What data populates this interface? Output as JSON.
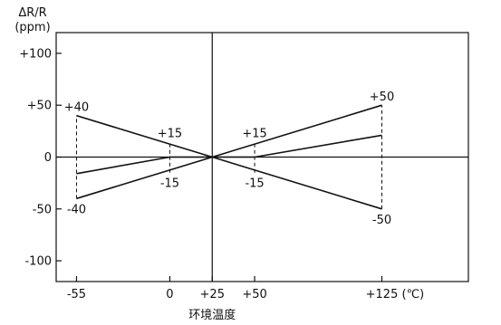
{
  "chart_data": {
    "type": "line",
    "title": "",
    "ylabel_line1": "ΔR/R",
    "ylabel_line2": "(ppm)",
    "xlabel": "环境温度",
    "x_unit": "(℃)",
    "xlim": [
      -67,
      176
    ],
    "ylim": [
      -120,
      120
    ],
    "grid": false,
    "x_ticks": [
      {
        "value": -55,
        "label": "-55"
      },
      {
        "value": 0,
        "label": "0"
      },
      {
        "value": 25,
        "label": "+25"
      },
      {
        "value": 50,
        "label": "+50"
      },
      {
        "value": 125,
        "label": "+125"
      }
    ],
    "y_ticks": [
      {
        "value": 100,
        "label": "+100"
      },
      {
        "value": 50,
        "label": "+50"
      },
      {
        "value": 0,
        "label": "0"
      },
      {
        "value": -50,
        "label": "-50"
      },
      {
        "value": -100,
        "label": "-100"
      }
    ],
    "series": [
      {
        "points": [
          [
            -55,
            40
          ],
          [
            25,
            0
          ],
          [
            125,
            -50
          ]
        ]
      },
      {
        "points": [
          [
            -55,
            -40
          ],
          [
            25,
            0
          ],
          [
            125,
            50
          ]
        ]
      },
      {
        "points": [
          [
            -55,
            -16
          ],
          [
            0,
            0
          ],
          [
            50,
            0
          ],
          [
            125,
            21
          ]
        ]
      }
    ],
    "dashed_markers": [
      {
        "x": -55,
        "y_from": -40,
        "y_to": 40
      },
      {
        "x": 0,
        "y_from": -15,
        "y_to": 15
      },
      {
        "x": 50,
        "y_from": -15,
        "y_to": 15
      },
      {
        "x": 125,
        "y_from": -50,
        "y_to": 50
      }
    ],
    "annotations": [
      {
        "text": "+40",
        "x": -55,
        "y": 40,
        "pos": "above"
      },
      {
        "text": "-40",
        "x": -55,
        "y": -40,
        "pos": "below"
      },
      {
        "text": "+15",
        "x": 0,
        "y": 15,
        "pos": "above"
      },
      {
        "text": "-15",
        "x": 0,
        "y": -15,
        "pos": "below"
      },
      {
        "text": "+15",
        "x": 50,
        "y": 15,
        "pos": "above"
      },
      {
        "text": "-15",
        "x": 50,
        "y": -15,
        "pos": "below"
      },
      {
        "text": "+50",
        "x": 125,
        "y": 50,
        "pos": "above"
      },
      {
        "text": "-50",
        "x": 125,
        "y": -50,
        "pos": "below"
      }
    ]
  }
}
